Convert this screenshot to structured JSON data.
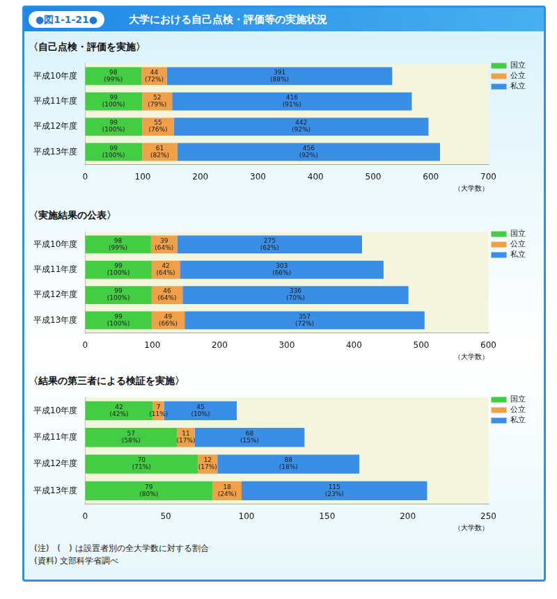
{
  "header": {
    "figure_number": "●図1-1-21●",
    "title": "大学における自己点検・評価等の実施状況"
  },
  "chart_data": [
    {
      "type": "bar",
      "title": "〈自己点検・評価を実施〉",
      "orientation": "horizontal",
      "stacked": true,
      "categories": [
        "平成10年度",
        "平成11年度",
        "平成12年度",
        "平成13年度"
      ],
      "series": [
        {
          "name": "国立",
          "color": "#44cc44",
          "values": [
            98,
            99,
            99,
            99
          ],
          "value_labels": [
            "98\n(99%)",
            "99\n(100%)",
            "99\n(100%)",
            "99\n(100%)"
          ]
        },
        {
          "name": "公立",
          "color": "#f0a048",
          "values": [
            44,
            52,
            55,
            61
          ],
          "value_labels": [
            "44\n(72%)",
            "52\n(79%)",
            "55\n(76%)",
            "61\n(82%)"
          ]
        },
        {
          "name": "私立",
          "color": "#3a8ee6",
          "values": [
            391,
            416,
            442,
            456
          ],
          "value_labels": [
            "391\n(88%)",
            "416\n(91%)",
            "442\n(92%)",
            "456\n(92%)"
          ]
        }
      ],
      "xlim": [
        0,
        700
      ],
      "xticks": [
        0,
        100,
        200,
        300,
        400,
        500,
        600,
        700
      ],
      "x_label": "（大学数）",
      "grid": false,
      "legend": "top-right",
      "data_labels": true
    },
    {
      "type": "bar",
      "title": "〈実施結果の公表〉",
      "orientation": "horizontal",
      "stacked": true,
      "categories": [
        "平成10年度",
        "平成11年度",
        "平成12年度",
        "平成13年度"
      ],
      "series": [
        {
          "name": "国立",
          "color": "#44cc44",
          "values": [
            98,
            99,
            99,
            99
          ],
          "value_labels": [
            "98\n(99%)",
            "99\n(100%)",
            "99\n(100%)",
            "99\n(100%)"
          ]
        },
        {
          "name": "公立",
          "color": "#f0a048",
          "values": [
            39,
            42,
            46,
            49
          ],
          "value_labels": [
            "39\n(64%)",
            "42\n(64%)",
            "46\n(64%)",
            "49\n(66%)"
          ]
        },
        {
          "name": "私立",
          "color": "#3a8ee6",
          "values": [
            275,
            303,
            336,
            357
          ],
          "value_labels": [
            "275\n(62%)",
            "303\n(66%)",
            "336\n(70%)",
            "357\n(72%)"
          ]
        }
      ],
      "xlim": [
        0,
        600
      ],
      "xticks": [
        0,
        100,
        200,
        300,
        400,
        500,
        600
      ],
      "x_label": "（大学数）",
      "grid": false,
      "legend": "top-right",
      "data_labels": true
    },
    {
      "type": "bar",
      "title": "〈結果の第三者による検証を実施〉",
      "orientation": "horizontal",
      "stacked": true,
      "categories": [
        "平成10年度",
        "平成11年度",
        "平成12年度",
        "平成13年度"
      ],
      "series": [
        {
          "name": "国立",
          "color": "#44cc44",
          "values": [
            42,
            57,
            70,
            79
          ],
          "value_labels": [
            "42\n(42%)",
            "57\n(58%)",
            "70\n(71%)",
            "79\n(80%)"
          ]
        },
        {
          "name": "公立",
          "color": "#f0a048",
          "values": [
            7,
            11,
            12,
            18
          ],
          "value_labels": [
            "7\n(11%)",
            "11\n(17%)",
            "12\n(17%)",
            "18\n(24%)"
          ]
        },
        {
          "name": "私立",
          "color": "#3a8ee6",
          "values": [
            45,
            68,
            88,
            115
          ],
          "value_labels": [
            "45\n(10%)",
            "68\n(15%)",
            "88\n(18%)",
            "115\n(23%)"
          ]
        }
      ],
      "xlim": [
        0,
        250
      ],
      "xticks": [
        0,
        50,
        100,
        150,
        200,
        250
      ],
      "x_label": "（大学数）",
      "grid": false,
      "legend": "top-right",
      "data_labels": true
    }
  ],
  "notes": [
    "(注)　(　) は設置者別の全大学数に対する割合",
    "(資料) 文部科学省調べ"
  ]
}
